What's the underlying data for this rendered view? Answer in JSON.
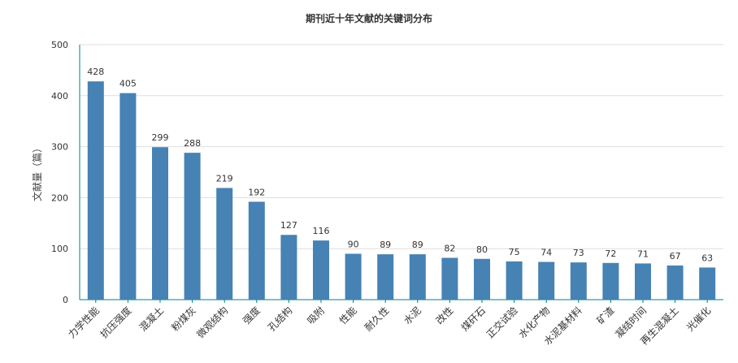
{
  "chart_data": {
    "type": "bar",
    "title": "期刊近十年文献的关键词分布",
    "xlabel": "",
    "ylabel": "文献量（篇）",
    "ylim": [
      0,
      500
    ],
    "yticks": [
      0,
      100,
      200,
      300,
      400,
      500
    ],
    "grid": true,
    "legend": "none",
    "bar_color": "#4682b4",
    "categories": [
      "力学性能",
      "抗压强度",
      "混凝土",
      "粉煤灰",
      "微观结构",
      "强度",
      "孔结构",
      "吸附",
      "性能",
      "耐久性",
      "水泥",
      "改性",
      "煤矸石",
      "正交试验",
      "水化产物",
      "水泥基材料",
      "矿渣",
      "凝结时间",
      "再生混凝土",
      "光催化"
    ],
    "values": [
      428,
      405,
      299,
      288,
      219,
      192,
      127,
      116,
      90,
      89,
      89,
      82,
      80,
      75,
      74,
      73,
      72,
      71,
      67,
      63
    ]
  }
}
